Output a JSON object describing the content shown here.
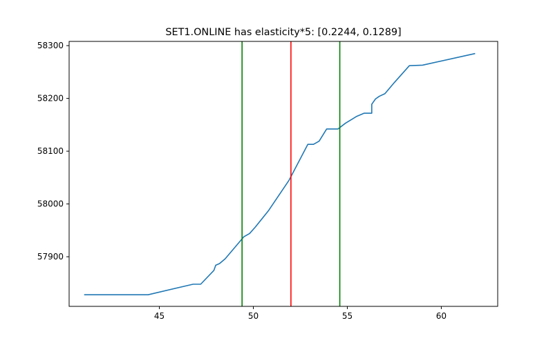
{
  "chart_data": {
    "type": "line",
    "title": "SET1.ONLINE has elasticity*5:   [0.2244, 0.1289]",
    "xlabel": "",
    "ylabel": "",
    "xlim": [
      40.2,
      63.0
    ],
    "ylim": [
      57806,
      58308
    ],
    "x_ticks": [
      45,
      50,
      55,
      60
    ],
    "y_ticks": [
      57900,
      58000,
      58100,
      58200,
      58300
    ],
    "grid": false,
    "legend": "none",
    "series": [
      {
        "color": "#1f77b4",
        "points": [
          [
            41.0,
            57828
          ],
          [
            44.4,
            57828
          ],
          [
            46.8,
            57848
          ],
          [
            47.2,
            57848
          ],
          [
            47.9,
            57874
          ],
          [
            48.0,
            57884
          ],
          [
            48.2,
            57887
          ],
          [
            48.5,
            57896
          ],
          [
            49.5,
            57938
          ],
          [
            49.8,
            57944
          ],
          [
            50.1,
            57956
          ],
          [
            50.8,
            57987
          ],
          [
            51.9,
            58045
          ],
          [
            52.9,
            58113
          ],
          [
            53.2,
            58113
          ],
          [
            53.5,
            58119
          ],
          [
            53.9,
            58142
          ],
          [
            54.5,
            58142
          ],
          [
            54.9,
            58153
          ],
          [
            55.5,
            58166
          ],
          [
            55.9,
            58172
          ],
          [
            56.3,
            58172
          ],
          [
            56.3,
            58189
          ],
          [
            56.5,
            58199
          ],
          [
            56.7,
            58204
          ],
          [
            57.0,
            58209
          ],
          [
            57.5,
            58230
          ],
          [
            58.3,
            58262
          ],
          [
            59.0,
            58263
          ],
          [
            61.8,
            58285
          ]
        ]
      }
    ],
    "vlines": [
      {
        "x": 49.4,
        "color": "#008000"
      },
      {
        "x": 52.0,
        "color": "#ff0000"
      },
      {
        "x": 54.6,
        "color": "#008000"
      }
    ]
  }
}
